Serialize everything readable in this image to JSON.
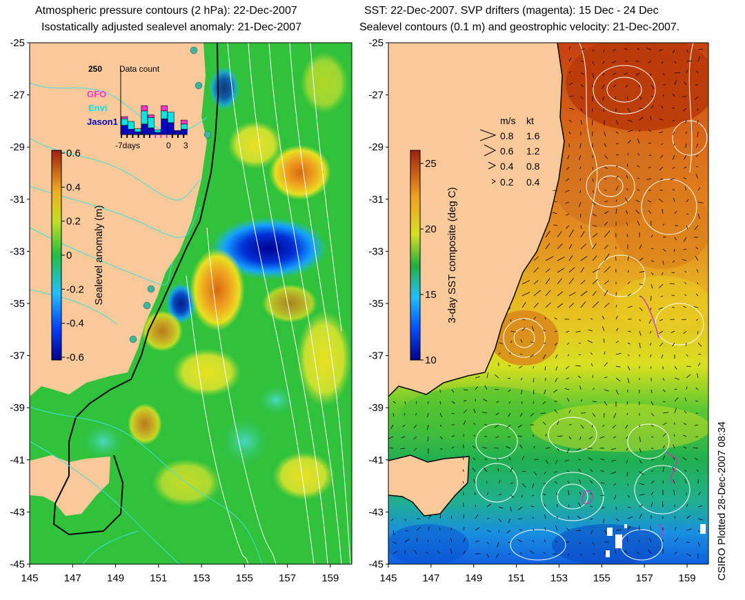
{
  "left_panel": {
    "title_line1": "Atmospheric pressure contours (2 hPa): 22-Dec-2007",
    "title_line2": "Isostatically adjusted sealevel anomaly: 21-Dec-2007",
    "colorbar": {
      "label": "Sealevel anomaly (m)",
      "ticks": [
        "0.6",
        "0.4",
        "0.2",
        "0",
        "-0.2",
        "-0.4",
        "-0.6"
      ],
      "range": [
        -0.6,
        0.6
      ]
    },
    "inset": {
      "title": "Data count",
      "y_max_label": "250",
      "legend": [
        {
          "name": "GFO",
          "color": "#ff33cc"
        },
        {
          "name": "Envi",
          "color": "#00e5e5"
        },
        {
          "name": "Jason1",
          "color": "#0000cc"
        }
      ],
      "x_labels": [
        "-7days",
        "0",
        "3"
      ],
      "bars": [
        {
          "jason1": 35,
          "envi": 25,
          "gfo": 8
        },
        {
          "jason1": 20,
          "envi": 30,
          "gfo": 0
        },
        {
          "jason1": 10,
          "envi": 12,
          "gfo": 0
        },
        {
          "jason1": 40,
          "envi": 50,
          "gfo": 20
        },
        {
          "jason1": 25,
          "envi": 40,
          "gfo": 10
        },
        {
          "jason1": 8,
          "envi": 10,
          "gfo": 0
        },
        {
          "jason1": 60,
          "envi": 30,
          "gfo": 20
        },
        {
          "jason1": 45,
          "envi": 40,
          "gfo": 0
        },
        {
          "jason1": 15,
          "envi": 0,
          "gfo": 0
        },
        {
          "jason1": 20,
          "envi": 20,
          "gfo": 15
        }
      ]
    }
  },
  "right_panel": {
    "title_line1": "SST: 22-Dec-2007. SVP drifters (magenta): 15 Dec - 24 Dec",
    "title_line2": "Sealevel contours (0.1 m) and geostrophic velocity: 21-Dec-2007.",
    "colorbar": {
      "label": "3-day SST composite (deg C)",
      "ticks": [
        "25",
        "20",
        "15",
        "10"
      ],
      "range": [
        10,
        26
      ]
    },
    "velocity_legend": {
      "header_ms": "m/s",
      "header_kt": "kt",
      "rows": [
        {
          "ms": "0.8",
          "kt": "1.6"
        },
        {
          "ms": "0.6",
          "kt": "1.2"
        },
        {
          "ms": "0.4",
          "kt": "0.8"
        },
        {
          "ms": "0.2",
          "kt": "0.4"
        }
      ]
    }
  },
  "axes": {
    "lat_labels": [
      "-25",
      "-27",
      "-29",
      "-31",
      "-33",
      "-35",
      "-37",
      "-39",
      "-41",
      "-43",
      "-45"
    ],
    "lon_labels": [
      "145",
      "147",
      "149",
      "151",
      "153",
      "155",
      "157",
      "159"
    ],
    "lat_range": [
      -45,
      -25
    ],
    "lon_range": [
      145,
      160
    ]
  },
  "footer": {
    "stamp": "CSIRO Plotted 28-Dec-2007 08:34"
  },
  "colors": {
    "land": "#f9c99a",
    "ocean_green": "#2fc23a",
    "contour_cyan": "#40e0e0",
    "contour_white": "#ffffff"
  }
}
